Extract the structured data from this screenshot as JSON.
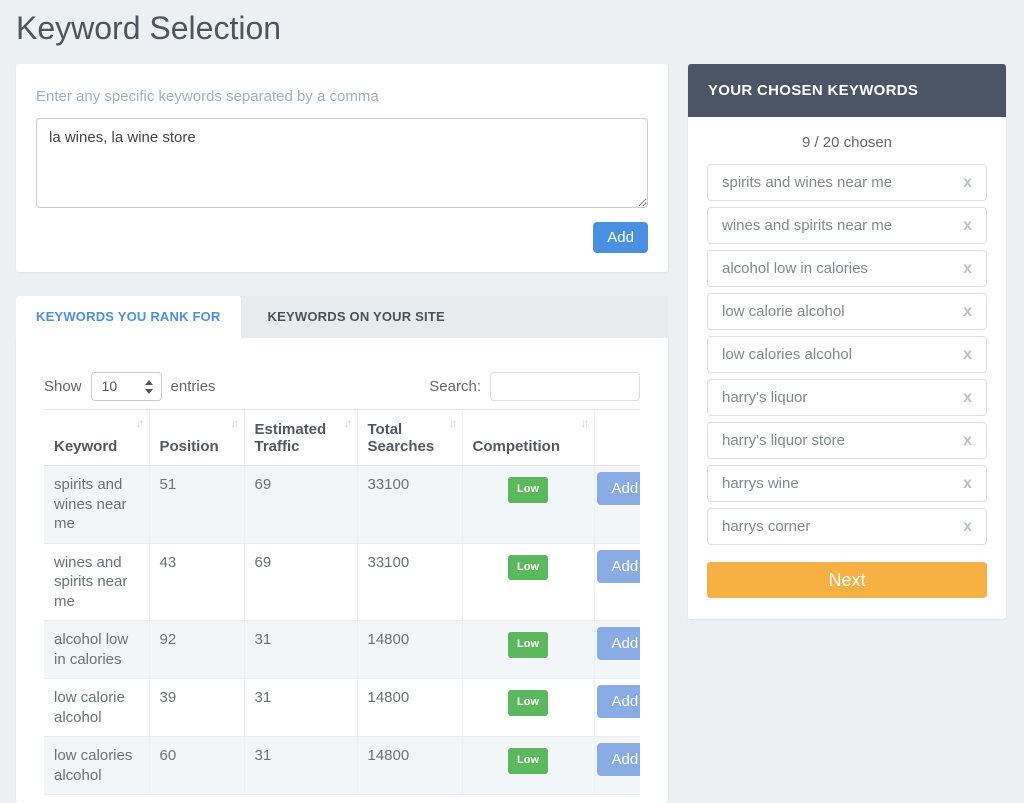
{
  "page": {
    "title": "Keyword Selection"
  },
  "keyword_entry": {
    "label": "Enter any specific keywords separated by a comma",
    "textarea_value": "la wines, la wine store",
    "add_button": "Add"
  },
  "tabs": [
    {
      "label": "KEYWORDS YOU RANK FOR",
      "active": true
    },
    {
      "label": "KEYWORDS ON YOUR SITE",
      "active": false
    }
  ],
  "table_controls": {
    "show_label": "Show",
    "page_size": "10",
    "entries_label": "entries",
    "search_label": "Search:",
    "search_value": ""
  },
  "table": {
    "columns": [
      "Keyword",
      "Position",
      "Estimated Traffic",
      "Total Searches",
      "Competition",
      ""
    ],
    "rows": [
      {
        "keyword": "spirits and wines near me",
        "position": "51",
        "estimated_traffic": "69",
        "total_searches": "33100",
        "competition": "Low",
        "action": "Add"
      },
      {
        "keyword": "wines and spirits near me",
        "position": "43",
        "estimated_traffic": "69",
        "total_searches": "33100",
        "competition": "Low",
        "action": "Add"
      },
      {
        "keyword": "alcohol low in calories",
        "position": "92",
        "estimated_traffic": "31",
        "total_searches": "14800",
        "competition": "Low",
        "action": "Add"
      },
      {
        "keyword": "low calorie alcohol",
        "position": "39",
        "estimated_traffic": "31",
        "total_searches": "14800",
        "competition": "Low",
        "action": "Add"
      },
      {
        "keyword": "low calories alcohol",
        "position": "60",
        "estimated_traffic": "31",
        "total_searches": "14800",
        "competition": "Low",
        "action": "Add"
      }
    ]
  },
  "sidebar": {
    "header": "YOUR CHOSEN KEYWORDS",
    "chosen_count": "9 / 20 chosen",
    "keywords": [
      "spirits and wines near me",
      "wines and spirits near me",
      "alcohol low in calories",
      "low calorie alcohol",
      "low calories alcohol",
      "harry's liquor",
      "harry's liquor store",
      "harrys wine",
      "harrys corner"
    ],
    "remove_label": "x",
    "next_button": "Next"
  },
  "icons": {
    "sort": "↓↑"
  },
  "colors": {
    "page_background": "#edf0f2",
    "primary_blue": "#4a90e2",
    "row_add_blue": "#8aace4",
    "badge_green": "#5cb85c",
    "sidebar_header": "#4c5565",
    "next_orange": "#f6b044",
    "stripe": "#f3f6f9"
  }
}
